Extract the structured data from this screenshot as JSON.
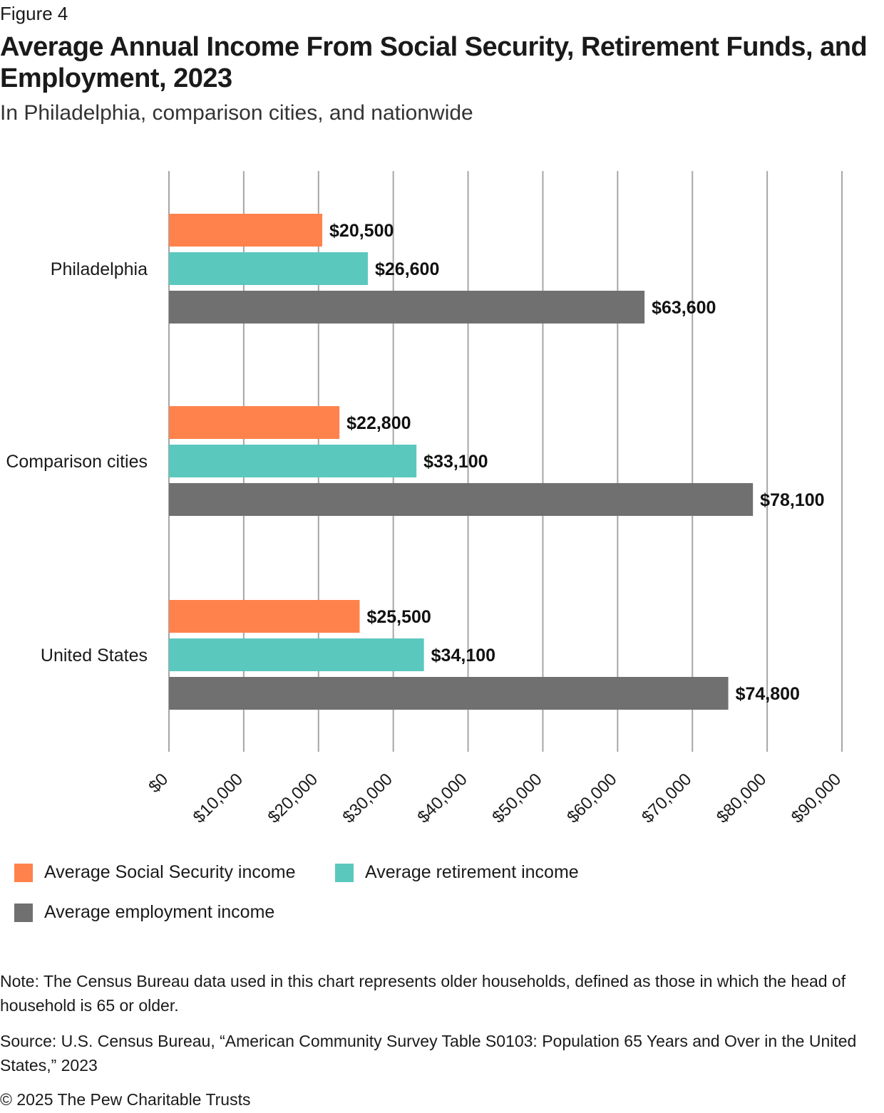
{
  "header": {
    "figure_label": "Figure 4",
    "title": "Average Annual Income From Social Security, Retirement Funds, and Employment, 2023",
    "subtitle": "In Philadelphia, comparison cities, and nationwide"
  },
  "chart_data": {
    "type": "bar",
    "orientation": "horizontal",
    "categories": [
      "Philadelphia",
      "Comparison cities",
      "United States"
    ],
    "series": [
      {
        "name": "Average Social Security income",
        "color": "#ff824c",
        "values": [
          20500,
          22800,
          25500
        ],
        "labels": [
          "$20,500",
          "$22,800",
          "$25,500"
        ]
      },
      {
        "name": "Average retirement income",
        "color": "#5bc8be",
        "values": [
          26600,
          33100,
          34100
        ],
        "labels": [
          "$26,600",
          "$33,100",
          "$34,100"
        ]
      },
      {
        "name": "Average employment income",
        "color": "#707070",
        "values": [
          63600,
          78100,
          74800
        ],
        "labels": [
          "$63,600",
          "$78,100",
          "$74,800"
        ]
      }
    ],
    "xlim": [
      0,
      90000
    ],
    "xticks": [
      0,
      10000,
      20000,
      30000,
      40000,
      50000,
      60000,
      70000,
      80000,
      90000
    ],
    "xtick_labels": [
      "$0",
      "$10,000",
      "$20,000",
      "$30,000",
      "$40,000",
      "$50,000",
      "$60,000",
      "$70,000",
      "$80,000",
      "$90,000"
    ],
    "grid": true,
    "legend_position": "bottom-left"
  },
  "footer": {
    "note": "Note: The Census Bureau data used in this chart represents older households, defined as those in which the head of household is 65 or older.",
    "source": "Source: U.S. Census Bureau, “American Community Survey Table S0103: Population 65 Years and Over in the United States,” 2023",
    "copyright": "© 2025 The Pew Charitable Trusts"
  }
}
